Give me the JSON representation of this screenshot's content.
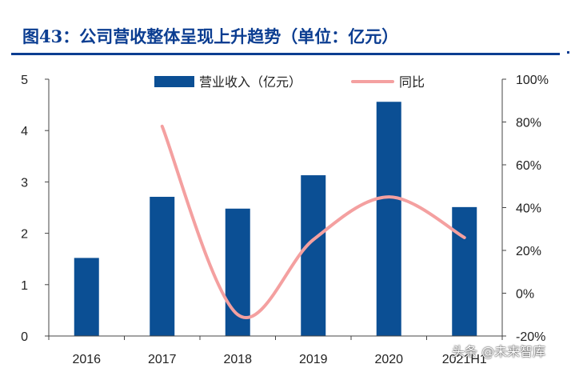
{
  "chart_data": {
    "type": "bar+line",
    "title": "图43：公司营收整体呈现上升趋势（单位：亿元）",
    "categories": [
      "2016",
      "2017",
      "2018",
      "2019",
      "2020",
      "2021H1"
    ],
    "series": [
      {
        "name": "营业收入（亿元）",
        "type": "bar",
        "axis": "left",
        "values": [
          1.52,
          2.71,
          2.48,
          3.13,
          4.56,
          2.51
        ]
      },
      {
        "name": "同比",
        "type": "line",
        "axis": "right",
        "values": [
          null,
          78,
          -10,
          25,
          45,
          26
        ]
      }
    ],
    "y_left": {
      "ylim": [
        0,
        5
      ],
      "ticks": [
        "0",
        "1",
        "2",
        "3",
        "4",
        "5"
      ]
    },
    "y_right": {
      "ylim": [
        -20,
        100
      ],
      "ticks": [
        "-20%",
        "0%",
        "20%",
        "40%",
        "60%",
        "80%",
        "100%"
      ]
    },
    "legend": "top-center",
    "grid": false,
    "colors": {
      "bar": "#0b4f94",
      "line": "#f4a0a0",
      "axis": "#444444",
      "title": "#0b3d91"
    }
  },
  "watermark": "头条 @未来智库"
}
